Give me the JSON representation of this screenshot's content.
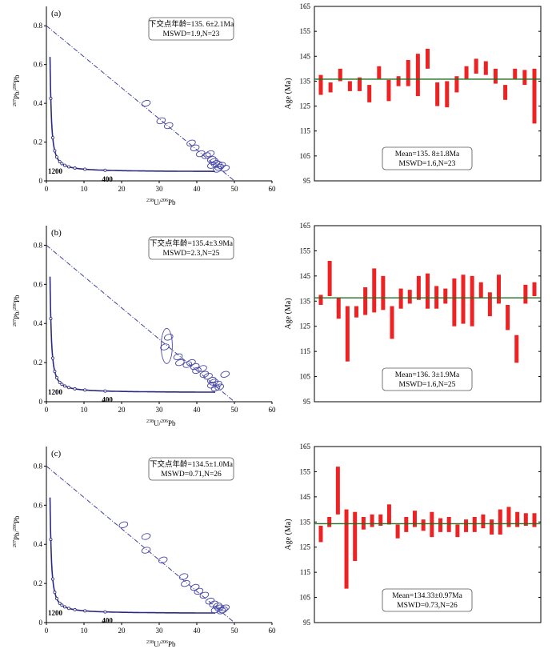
{
  "colors": {
    "curve": "#2a2a80",
    "ellipse": "#4a4aa8",
    "bar": "#ee2222",
    "mean_line": "#1f6e1f",
    "dash": "#4040a0"
  },
  "chart_data": [
    {
      "type": "scatter",
      "panel": "(a)",
      "box_line1": "下交点年龄=135. 6±2.1Ma",
      "box_line2": "MSWD=1.9,N=23",
      "xlabel_main": "U/",
      "xlabel_sup1": "238",
      "xlabel_sup2": "206",
      "xlabel_end": "Pb",
      "ylabel_main": "Pb/",
      "ylabel_sup1": "207",
      "ylabel_sup2": "206",
      "ylabel_end": "Pb",
      "xlim": [
        0,
        60
      ],
      "ylim": [
        0,
        0.9
      ],
      "xticks": [
        "0",
        "10",
        "20",
        "30",
        "40",
        "50",
        "60"
      ],
      "yticks": [
        "0",
        "0.2",
        "0.4",
        "0.6",
        "0.8"
      ],
      "concordia_labels": [
        "1200",
        "400"
      ],
      "discordia": {
        "y_intercept": 0.8,
        "x_intercept": 50
      },
      "analyses": [
        {
          "x": 26.5,
          "y": 0.4
        },
        {
          "x": 30.5,
          "y": 0.31
        },
        {
          "x": 32.5,
          "y": 0.285
        },
        {
          "x": 38.5,
          "y": 0.195
        },
        {
          "x": 39.5,
          "y": 0.17
        },
        {
          "x": 41,
          "y": 0.14
        },
        {
          "x": 42.5,
          "y": 0.13
        },
        {
          "x": 43.5,
          "y": 0.14
        },
        {
          "x": 44,
          "y": 0.11
        },
        {
          "x": 44.5,
          "y": 0.1
        },
        {
          "x": 45,
          "y": 0.09
        },
        {
          "x": 45.5,
          "y": 0.085
        },
        {
          "x": 46,
          "y": 0.07
        },
        {
          "x": 46.5,
          "y": 0.08
        },
        {
          "x": 47.5,
          "y": 0.065
        },
        {
          "x": 45.5,
          "y": 0.06
        },
        {
          "x": 44,
          "y": 0.08
        }
      ]
    },
    {
      "type": "bar",
      "panel": "(a)-ages",
      "ylabel": "Age (Ma)",
      "ylim": [
        95,
        165
      ],
      "yticks": [
        "95",
        "105",
        "115",
        "125",
        "135",
        "145",
        "155",
        "165"
      ],
      "mean": 135.8,
      "legend_line1": "Mean=135. 8±1.8Ma",
      "legend_line2": "MSWD=1.6,N=23",
      "intervals": [
        [
          129.5,
          137.5
        ],
        [
          130.5,
          134.5
        ],
        [
          135,
          140
        ],
        [
          131,
          135
        ],
        [
          131,
          136.5
        ],
        [
          126.5,
          133.5
        ],
        [
          136,
          141
        ],
        [
          127,
          135.5
        ],
        [
          133,
          137
        ],
        [
          133,
          143.5
        ],
        [
          129,
          146
        ],
        [
          140,
          148
        ],
        [
          125,
          134.5
        ],
        [
          124.5,
          135
        ],
        [
          130.5,
          137
        ],
        [
          136,
          141
        ],
        [
          138,
          144
        ],
        [
          137.5,
          143
        ],
        [
          134,
          140
        ],
        [
          127.5,
          133.5
        ],
        [
          136,
          140
        ],
        [
          133.5,
          139.5
        ],
        [
          118,
          140
        ]
      ]
    },
    {
      "type": "scatter",
      "panel": "(b)",
      "box_line1": "下交点年龄=135.4±3.9Ma",
      "box_line2": "MSWD=2.3,N=25",
      "xlabel_main": "U/",
      "xlabel_sup1": "238",
      "xlabel_sup2": "206",
      "xlabel_end": "Pb",
      "ylabel_main": "Pb/",
      "ylabel_sup1": "207",
      "ylabel_sup2": "206",
      "ylabel_end": "Pb",
      "xlim": [
        0,
        60
      ],
      "ylim": [
        0,
        0.9
      ],
      "xticks": [
        "0",
        "10",
        "20",
        "30",
        "40",
        "50",
        "60"
      ],
      "yticks": [
        "0",
        "0.2",
        "0.4",
        "0.6",
        "0.8"
      ],
      "concordia_labels": [
        "1200",
        "400"
      ],
      "discordia": {
        "y_intercept": 0.8,
        "x_intercept": 50
      },
      "analyses": [
        {
          "x": 32.5,
          "y": 0.33
        },
        {
          "x": 32,
          "y": 0.285
        },
        {
          "x": 31.5,
          "y": 0.28
        },
        {
          "x": 35,
          "y": 0.23
        },
        {
          "x": 35.5,
          "y": 0.2
        },
        {
          "x": 37.5,
          "y": 0.19
        },
        {
          "x": 38.5,
          "y": 0.2
        },
        {
          "x": 39.5,
          "y": 0.18
        },
        {
          "x": 40,
          "y": 0.16
        },
        {
          "x": 41.5,
          "y": 0.17
        },
        {
          "x": 42,
          "y": 0.14
        },
        {
          "x": 43,
          "y": 0.13
        },
        {
          "x": 44,
          "y": 0.11
        },
        {
          "x": 44.5,
          "y": 0.1
        },
        {
          "x": 45.5,
          "y": 0.09
        },
        {
          "x": 46,
          "y": 0.075
        },
        {
          "x": 47.5,
          "y": 0.14
        },
        {
          "x": 45,
          "y": 0.07
        },
        {
          "x": 44,
          "y": 0.085
        }
      ]
    },
    {
      "type": "bar",
      "panel": "(b)-ages",
      "ylabel": "Age (Ma)",
      "ylim": [
        95,
        165
      ],
      "yticks": [
        "95",
        "105",
        "115",
        "125",
        "135",
        "145",
        "155",
        "165"
      ],
      "mean": 136.3,
      "legend_line1": "Mean=136. 3±1.9Ma",
      "legend_line2": "MSWD=1.6,N=25",
      "intervals": [
        [
          133.5,
          137.5
        ],
        [
          137,
          151
        ],
        [
          128,
          136.5
        ],
        [
          111,
          133
        ],
        [
          128.5,
          133
        ],
        [
          129.5,
          140.5
        ],
        [
          130.5,
          148
        ],
        [
          131.5,
          145
        ],
        [
          120,
          133
        ],
        [
          132,
          140
        ],
        [
          134,
          139.5
        ],
        [
          135.5,
          145
        ],
        [
          132,
          146
        ],
        [
          132,
          141
        ],
        [
          134,
          140
        ],
        [
          125,
          144
        ],
        [
          126,
          145.5
        ],
        [
          125,
          145
        ],
        [
          136.5,
          142.5
        ],
        [
          129,
          138.5
        ],
        [
          134,
          145.5
        ],
        [
          123.5,
          133.5
        ],
        [
          110.5,
          121.5
        ],
        [
          134,
          141.5
        ],
        [
          137,
          142.5
        ]
      ]
    },
    {
      "type": "scatter",
      "panel": "(c)",
      "box_line1": "下交点年龄=134.5±1.0Ma",
      "box_line2": "MSWD=0.71,N=26",
      "xlabel_main": "U/",
      "xlabel_sup1": "238",
      "xlabel_sup2": "206",
      "xlabel_end": "Pb",
      "ylabel_main": "Pb/",
      "ylabel_sup1": "207",
      "ylabel_sup2": "206",
      "ylabel_end": "Pb",
      "xlim": [
        0,
        60
      ],
      "ylim": [
        0,
        0.9
      ],
      "xticks": [
        "0",
        "10",
        "20",
        "30",
        "40",
        "50",
        "60"
      ],
      "yticks": [
        "0",
        "0.2",
        "0.4",
        "0.6",
        "0.8"
      ],
      "concordia_labels": [
        "1200",
        "400"
      ],
      "discordia": {
        "y_intercept": 0.8,
        "x_intercept": 50
      },
      "analyses": [
        {
          "x": 20.5,
          "y": 0.5
        },
        {
          "x": 26.5,
          "y": 0.44
        },
        {
          "x": 26.5,
          "y": 0.37
        },
        {
          "x": 31,
          "y": 0.32
        },
        {
          "x": 36.5,
          "y": 0.235
        },
        {
          "x": 37,
          "y": 0.2
        },
        {
          "x": 39.5,
          "y": 0.18
        },
        {
          "x": 40.5,
          "y": 0.16
        },
        {
          "x": 42,
          "y": 0.14
        },
        {
          "x": 43.5,
          "y": 0.11
        },
        {
          "x": 44.5,
          "y": 0.095
        },
        {
          "x": 45.5,
          "y": 0.085
        },
        {
          "x": 46,
          "y": 0.075
        },
        {
          "x": 47,
          "y": 0.065
        },
        {
          "x": 47.5,
          "y": 0.075
        },
        {
          "x": 46.5,
          "y": 0.06
        },
        {
          "x": 45,
          "y": 0.065
        }
      ]
    },
    {
      "type": "bar",
      "panel": "(c)-ages",
      "ylabel": "Age (Ma)",
      "ylim": [
        95,
        165
      ],
      "yticks": [
        "95",
        "105",
        "115",
        "125",
        "135",
        "145",
        "155",
        "165"
      ],
      "mean": 134.33,
      "legend_line1": "Mean=134.33±0.97Ma",
      "legend_line2": "MSWD=0.73,N=26",
      "intervals": [
        [
          127,
          133.5
        ],
        [
          133,
          137
        ],
        [
          138,
          157
        ],
        [
          108.5,
          140
        ],
        [
          119.5,
          139
        ],
        [
          132,
          137
        ],
        [
          133,
          138
        ],
        [
          133.5,
          138
        ],
        [
          134,
          142
        ],
        [
          128.5,
          134
        ],
        [
          131,
          137
        ],
        [
          133,
          139.5
        ],
        [
          131.5,
          136
        ],
        [
          129,
          139
        ],
        [
          131,
          136.5
        ],
        [
          131,
          137
        ],
        [
          129,
          134
        ],
        [
          131,
          136
        ],
        [
          131,
          137
        ],
        [
          132.5,
          138
        ],
        [
          130,
          136
        ],
        [
          130,
          140
        ],
        [
          133,
          141
        ],
        [
          133,
          139
        ],
        [
          133.5,
          138.5
        ],
        [
          133,
          138.5
        ]
      ]
    }
  ]
}
